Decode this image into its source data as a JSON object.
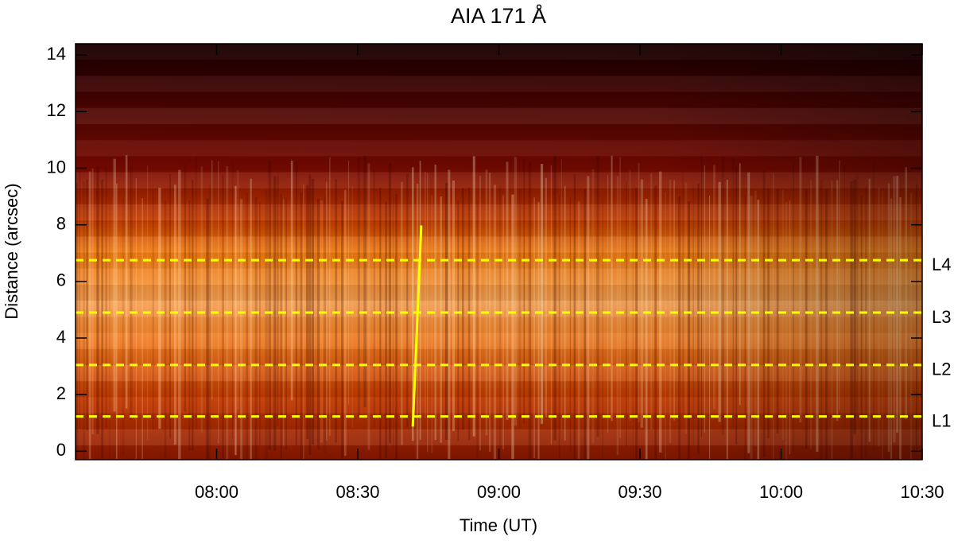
{
  "chart_data": {
    "type": "heatmap",
    "title": "AIA 171 Å",
    "x_label": "Time (UT)",
    "y_label": "Distance (arcsec)",
    "xlim": [
      450,
      630
    ],
    "xticks": [
      {
        "value": 480,
        "label": "08:00"
      },
      {
        "value": 510,
        "label": "08:30"
      },
      {
        "value": 540,
        "label": "09:00"
      },
      {
        "value": 570,
        "label": "09:30"
      },
      {
        "value": 600,
        "label": "10:00"
      },
      {
        "value": 630,
        "label": "10:30"
      }
    ],
    "ylim": [
      -0.3,
      14.4
    ],
    "yticks": [
      0,
      2,
      4,
      6,
      8,
      10,
      12,
      14
    ],
    "lines": [
      {
        "name": "L1",
        "y": 1.23,
        "color": "#ffff00"
      },
      {
        "name": "L2",
        "y": 3.05,
        "color": "#ffff00"
      },
      {
        "name": "L3",
        "y": 4.9,
        "color": "#ffff00"
      },
      {
        "name": "L4",
        "y": 6.75,
        "color": "#ffff00"
      }
    ],
    "slope_line": {
      "color": "#ffff00",
      "x": [
        521.7,
        523.5
      ],
      "y": [
        0.87,
        7.98
      ]
    }
  }
}
